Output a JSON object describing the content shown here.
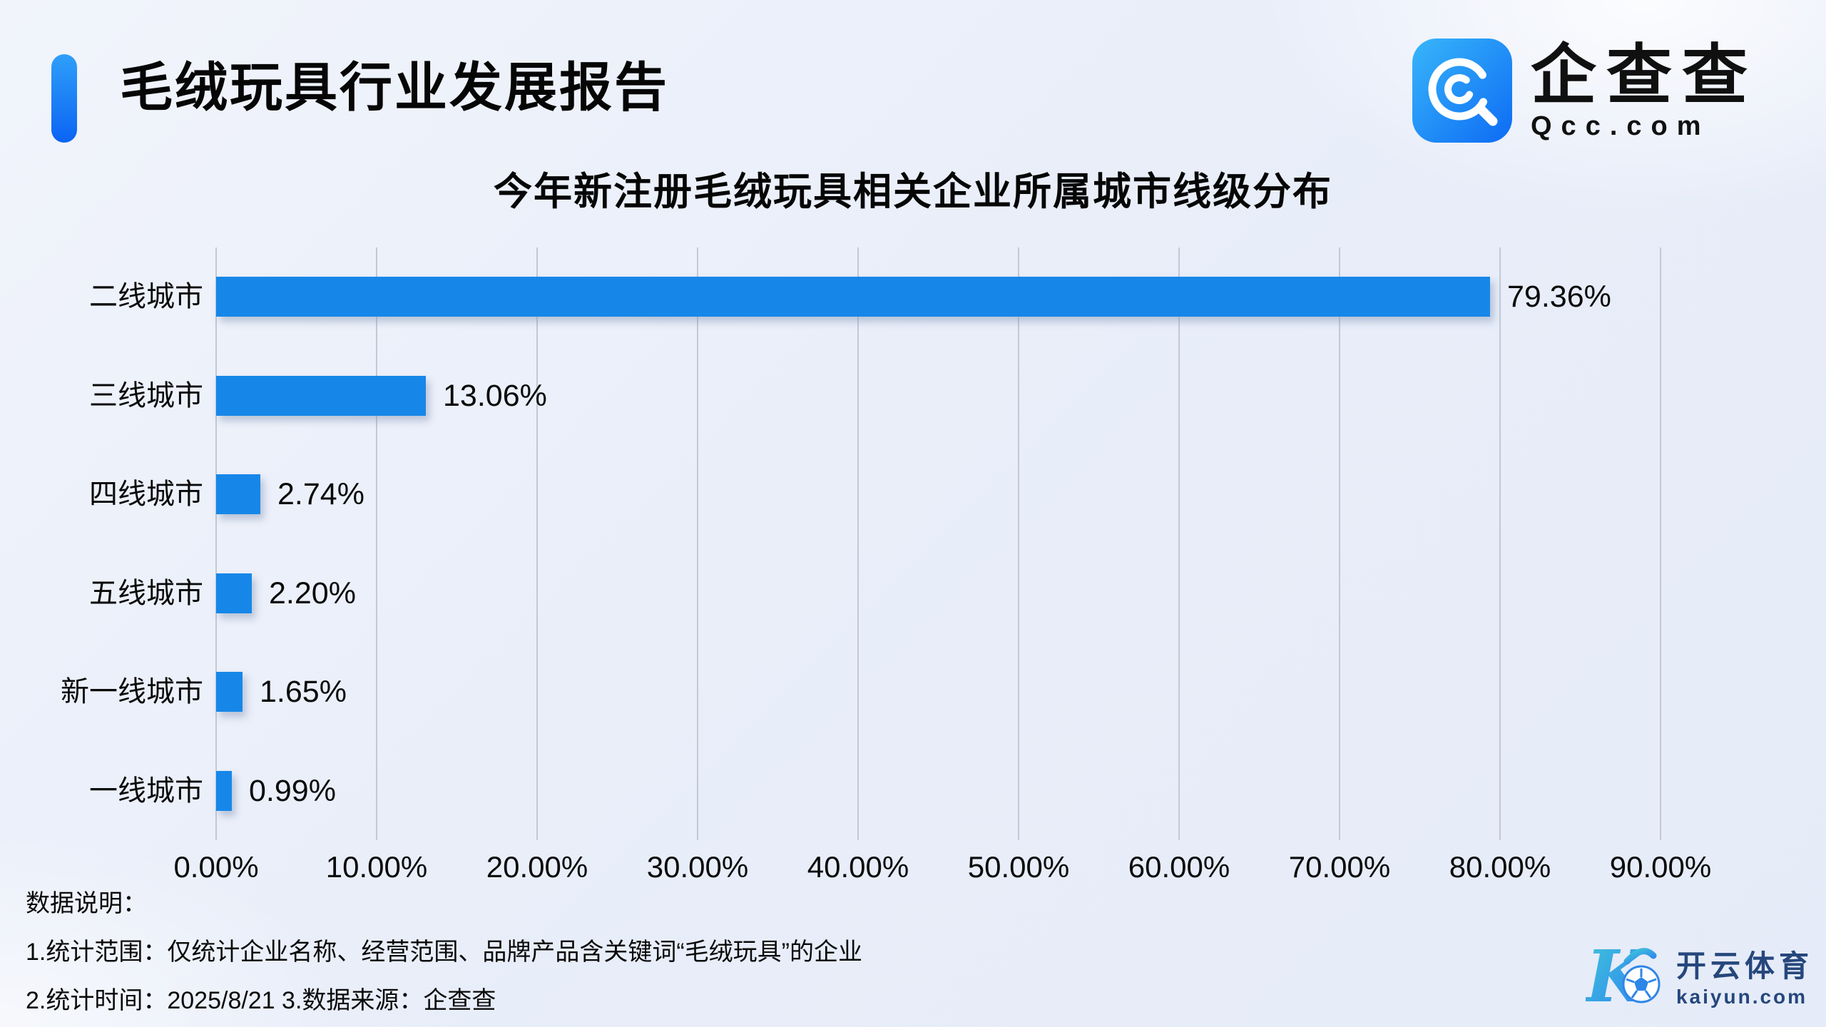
{
  "header": {
    "title": "毛绒玩具行业发展报告",
    "qcc_logo": {
      "name": "企查查",
      "domain": "Qcc.com"
    }
  },
  "chart_data": {
    "type": "bar",
    "orientation": "horizontal",
    "title": "今年新注册毛绒玩具相关企业所属城市线级分布",
    "categories": [
      "二线城市",
      "三线城市",
      "四线城市",
      "五线城市",
      "新一线城市",
      "一线城市"
    ],
    "values": [
      79.36,
      13.06,
      2.74,
      2.2,
      1.65,
      0.99
    ],
    "value_labels": [
      "79.36%",
      "13.06%",
      "2.74%",
      "2.20%",
      "1.65%",
      "0.99%"
    ],
    "x_ticks": [
      "0.00%",
      "10.00%",
      "20.00%",
      "30.00%",
      "40.00%",
      "50.00%",
      "60.00%",
      "70.00%",
      "80.00%",
      "90.00%"
    ],
    "xlim": [
      0,
      90
    ],
    "xlabel": "",
    "ylabel": "",
    "grid": true,
    "legend_position": "none",
    "bar_color": "#1687E9"
  },
  "notes": {
    "heading": "数据说明：",
    "line1": "1.统计范围：仅统计企业名称、经营范围、品牌产品含关键词“毛绒玩具”的企业",
    "line2": "2.统计时间：2025/8/21 3.数据来源：企查查"
  },
  "footer_logo": {
    "name": "开云体育",
    "domain": "kaiyun.com"
  }
}
